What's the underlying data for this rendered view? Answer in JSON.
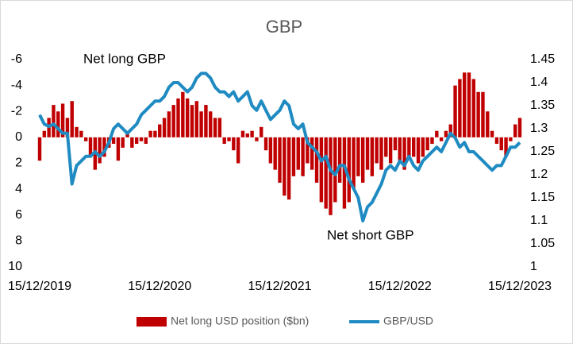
{
  "chart_data": {
    "type": "bar_line",
    "title": "GBP",
    "categories": [
      "15/12/2019",
      null,
      null,
      null,
      null,
      null,
      null,
      null,
      null,
      null,
      null,
      null,
      null,
      null,
      null,
      null,
      null,
      null,
      null,
      null,
      null,
      null,
      null,
      null,
      null,
      null,
      "15/12/2020",
      null,
      null,
      null,
      null,
      null,
      null,
      null,
      null,
      null,
      null,
      null,
      null,
      null,
      null,
      null,
      null,
      null,
      null,
      null,
      null,
      null,
      null,
      null,
      null,
      null,
      "15/12/2021",
      null,
      null,
      null,
      null,
      null,
      null,
      null,
      null,
      null,
      null,
      null,
      null,
      null,
      null,
      null,
      null,
      null,
      null,
      null,
      null,
      null,
      null,
      null,
      null,
      null,
      "15/12/2022",
      null,
      null,
      null,
      null,
      null,
      null,
      null,
      null,
      null,
      null,
      null,
      null,
      null,
      null,
      null,
      null,
      null,
      null,
      null,
      null,
      null,
      null,
      null,
      null,
      null,
      "15/12/2023"
    ],
    "series": [
      {
        "name": "Net long USD position ($bn)",
        "color": "#c00000",
        "kind": "bar",
        "axis": "y",
        "values": [
          1.8,
          -0.5,
          -1.5,
          -2.5,
          -2.0,
          -2.6,
          -1.5,
          -2.8,
          -0.8,
          -0.5,
          0.3,
          1.5,
          2.5,
          2.0,
          1.5,
          0.8,
          0.5,
          1.8,
          0.8,
          -0.3,
          0.8,
          0.5,
          0.3,
          0.5,
          -0.5,
          -0.5,
          -1.0,
          -1.5,
          -2.0,
          -2.5,
          -3.0,
          -3.5,
          -3.0,
          -2.5,
          -2.8,
          -2.0,
          -2.5,
          -2.0,
          -1.5,
          -1.5,
          0.5,
          0.3,
          1.0,
          2.0,
          -0.5,
          -0.3,
          -0.5,
          0.3,
          -0.8,
          1.0,
          2.0,
          2.5,
          3.5,
          4.5,
          4.8,
          3.0,
          2.5,
          3.0,
          2.0,
          2.5,
          3.5,
          5.0,
          5.5,
          6.0,
          5.0,
          3.5,
          5.5,
          5.0,
          4.0,
          3.0,
          3.5,
          2.5,
          3.0,
          2.0,
          2.5,
          1.5,
          2.0,
          1.0,
          2.0,
          2.5,
          1.5,
          1.5,
          2.0,
          1.5,
          1.0,
          0.5,
          -0.5,
          0.3,
          -0.5,
          -1.0,
          -4.0,
          -4.5,
          -5.0,
          -5.0,
          -4.5,
          -3.5,
          -3.5,
          -2.0,
          -0.5,
          0.5,
          1.0,
          1.5,
          0.3,
          -1.0,
          -1.5
        ]
      },
      {
        "name": "GBP/USD",
        "color": "#1f8bc2",
        "kind": "line",
        "axis": "y2",
        "values": [
          1.33,
          1.31,
          1.305,
          1.31,
          1.3,
          1.29,
          1.29,
          1.18,
          1.22,
          1.23,
          1.24,
          1.24,
          1.25,
          1.24,
          1.25,
          1.27,
          1.3,
          1.31,
          1.3,
          1.29,
          1.3,
          1.31,
          1.33,
          1.34,
          1.35,
          1.36,
          1.36,
          1.37,
          1.39,
          1.4,
          1.4,
          1.39,
          1.38,
          1.39,
          1.41,
          1.42,
          1.42,
          1.41,
          1.39,
          1.38,
          1.38,
          1.37,
          1.38,
          1.36,
          1.37,
          1.38,
          1.35,
          1.34,
          1.36,
          1.34,
          1.32,
          1.33,
          1.34,
          1.36,
          1.35,
          1.31,
          1.3,
          1.31,
          1.27,
          1.26,
          1.25,
          1.23,
          1.24,
          1.21,
          1.2,
          1.22,
          1.22,
          1.19,
          1.17,
          1.15,
          1.1,
          1.13,
          1.14,
          1.16,
          1.18,
          1.21,
          1.22,
          1.21,
          1.23,
          1.22,
          1.24,
          1.22,
          1.21,
          1.23,
          1.24,
          1.25,
          1.26,
          1.25,
          1.27,
          1.29,
          1.28,
          1.26,
          1.27,
          1.25,
          1.25,
          1.24,
          1.23,
          1.22,
          1.21,
          1.22,
          1.22,
          1.24,
          1.26,
          1.26,
          1.27
        ]
      }
    ],
    "ylim": [
      -6,
      10
    ],
    "y_inverted": true,
    "yticks": [
      -6,
      -4,
      -2,
      0,
      2,
      4,
      6,
      8,
      10
    ],
    "y2lim": [
      1,
      1.45
    ],
    "y2ticks": [
      1,
      1.05,
      1.1,
      1.15,
      1.2,
      1.25,
      1.3,
      1.35,
      1.4,
      1.45
    ],
    "annotations": [
      {
        "text": "Net long GBP"
      },
      {
        "text": "Net short GBP"
      }
    ],
    "legend": "bottom"
  }
}
